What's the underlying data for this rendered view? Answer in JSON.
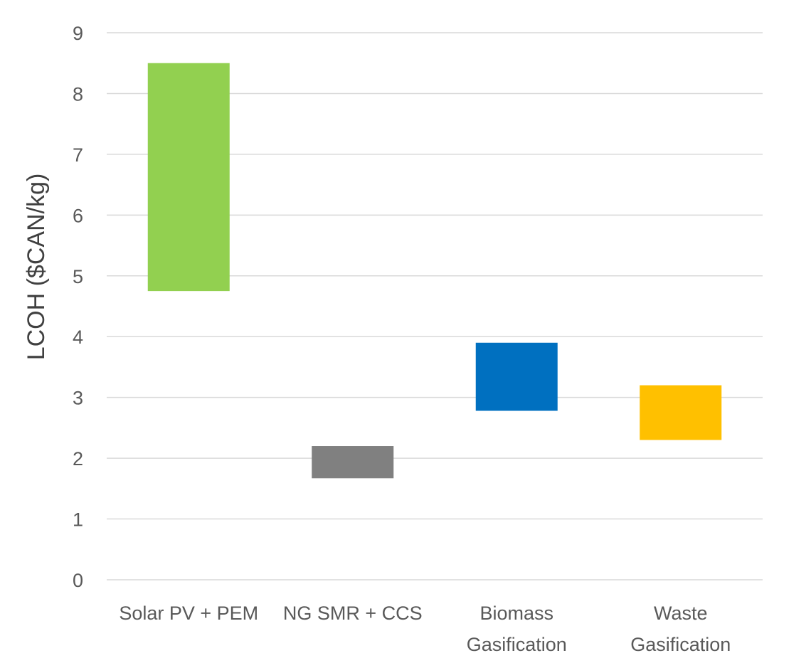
{
  "chart_data": {
    "type": "bar",
    "subtype": "floating-range",
    "title": "",
    "xlabel": "",
    "ylabel": "LCOH ($CAN/kg)",
    "ylim": [
      0,
      9
    ],
    "yticks": [
      "0",
      "1",
      "2",
      "3",
      "4",
      "5",
      "6",
      "7",
      "8",
      "9"
    ],
    "grid": true,
    "legend": "none",
    "categories": [
      {
        "lines": [
          "Solar PV + PEM"
        ],
        "low": 4.75,
        "high": 8.5,
        "color": "#92d050"
      },
      {
        "lines": [
          "NG SMR + CCS"
        ],
        "low": 1.67,
        "high": 2.2,
        "color": "#808080"
      },
      {
        "lines": [
          "Biomass",
          "Gasification"
        ],
        "low": 2.78,
        "high": 3.9,
        "color": "#0070c0"
      },
      {
        "lines": [
          "Waste",
          "Gasification"
        ],
        "low": 2.3,
        "high": 3.2,
        "color": "#ffc000"
      }
    ]
  }
}
